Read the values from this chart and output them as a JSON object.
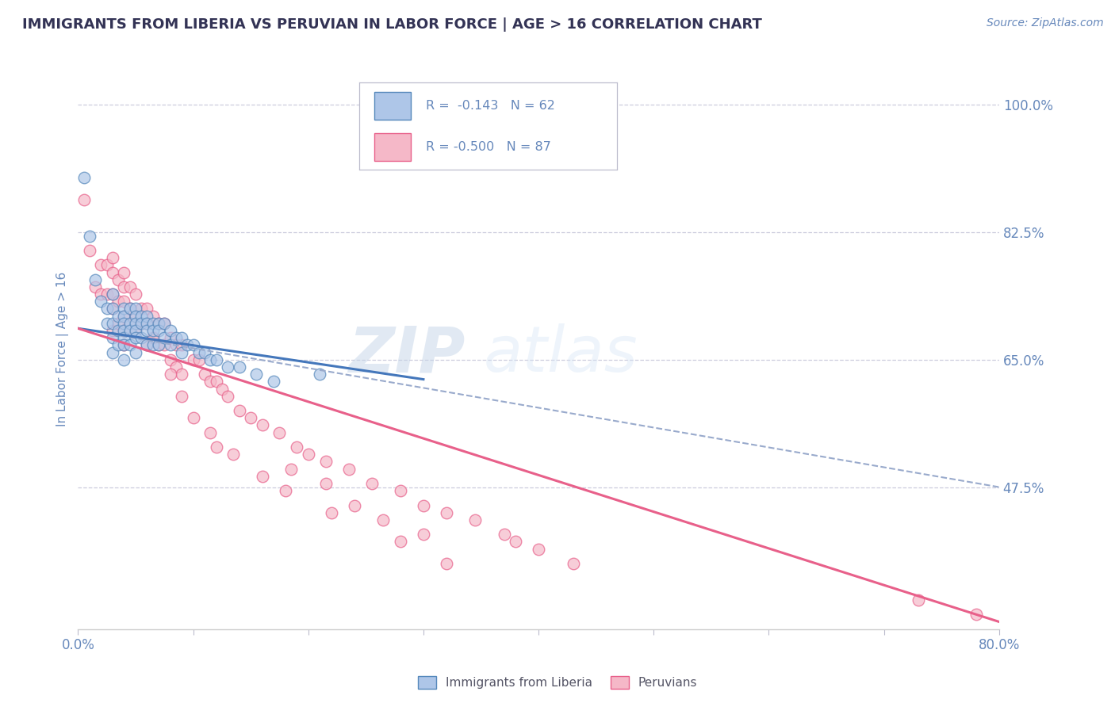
{
  "title": "IMMIGRANTS FROM LIBERIA VS PERUVIAN IN LABOR FORCE | AGE > 16 CORRELATION CHART",
  "source_text": "Source: ZipAtlas.com",
  "ylabel": "In Labor Force | Age > 16",
  "xlim": [
    0.0,
    0.8
  ],
  "ylim": [
    0.28,
    1.05
  ],
  "xticks": [
    0.0,
    0.1,
    0.2,
    0.3,
    0.4,
    0.5,
    0.6,
    0.7,
    0.8
  ],
  "yticks_right": [
    0.475,
    0.65,
    0.825,
    1.0
  ],
  "yticklabels_right": [
    "47.5%",
    "65.0%",
    "82.5%",
    "100.0%"
  ],
  "legend_r1": "R =  -0.143",
  "legend_n1": "N = 62",
  "legend_r2": "R = -0.500",
  "legend_n2": "N = 87",
  "color_liberia_fill": "#aec6e8",
  "color_liberia_edge": "#5588bb",
  "color_peruvian_fill": "#f5b8c8",
  "color_peruvian_edge": "#e8608a",
  "color_liberia_line": "#4477bb",
  "color_peruvian_line": "#e8608a",
  "color_dashed": "#99aacc",
  "background_color": "#ffffff",
  "grid_color": "#ccccdd",
  "title_color": "#333355",
  "axis_label_color": "#6688bb",
  "tick_color": "#6688bb",
  "watermark_zip": "ZIP",
  "watermark_atlas": "atlas",
  "liberia_x": [
    0.005,
    0.01,
    0.015,
    0.02,
    0.025,
    0.025,
    0.03,
    0.03,
    0.03,
    0.03,
    0.03,
    0.035,
    0.035,
    0.035,
    0.04,
    0.04,
    0.04,
    0.04,
    0.04,
    0.04,
    0.04,
    0.045,
    0.045,
    0.045,
    0.045,
    0.05,
    0.05,
    0.05,
    0.05,
    0.05,
    0.05,
    0.055,
    0.055,
    0.055,
    0.06,
    0.06,
    0.06,
    0.06,
    0.065,
    0.065,
    0.065,
    0.07,
    0.07,
    0.07,
    0.075,
    0.075,
    0.08,
    0.08,
    0.085,
    0.09,
    0.09,
    0.095,
    0.1,
    0.105,
    0.11,
    0.115,
    0.12,
    0.13,
    0.14,
    0.155,
    0.17,
    0.21
  ],
  "liberia_y": [
    0.9,
    0.82,
    0.76,
    0.73,
    0.72,
    0.7,
    0.74,
    0.72,
    0.7,
    0.68,
    0.66,
    0.71,
    0.69,
    0.67,
    0.72,
    0.71,
    0.7,
    0.69,
    0.68,
    0.67,
    0.65,
    0.72,
    0.7,
    0.69,
    0.67,
    0.72,
    0.71,
    0.7,
    0.69,
    0.68,
    0.66,
    0.71,
    0.7,
    0.68,
    0.71,
    0.7,
    0.69,
    0.67,
    0.7,
    0.69,
    0.67,
    0.7,
    0.69,
    0.67,
    0.7,
    0.68,
    0.69,
    0.67,
    0.68,
    0.68,
    0.66,
    0.67,
    0.67,
    0.66,
    0.66,
    0.65,
    0.65,
    0.64,
    0.64,
    0.63,
    0.62,
    0.63
  ],
  "peruvian_x": [
    0.005,
    0.01,
    0.015,
    0.02,
    0.02,
    0.025,
    0.025,
    0.03,
    0.03,
    0.03,
    0.03,
    0.03,
    0.035,
    0.035,
    0.035,
    0.04,
    0.04,
    0.04,
    0.04,
    0.04,
    0.04,
    0.045,
    0.045,
    0.045,
    0.05,
    0.05,
    0.05,
    0.055,
    0.055,
    0.06,
    0.06,
    0.06,
    0.065,
    0.065,
    0.07,
    0.07,
    0.075,
    0.075,
    0.08,
    0.08,
    0.085,
    0.085,
    0.09,
    0.09,
    0.1,
    0.105,
    0.11,
    0.115,
    0.12,
    0.125,
    0.13,
    0.14,
    0.15,
    0.16,
    0.175,
    0.19,
    0.2,
    0.215,
    0.235,
    0.255,
    0.28,
    0.3,
    0.32,
    0.345,
    0.37,
    0.38,
    0.4,
    0.43,
    0.065,
    0.08,
    0.09,
    0.1,
    0.115,
    0.12,
    0.135,
    0.16,
    0.18,
    0.22,
    0.28,
    0.32,
    0.185,
    0.215,
    0.24,
    0.265,
    0.3,
    0.73,
    0.78
  ],
  "peruvian_y": [
    0.87,
    0.8,
    0.75,
    0.78,
    0.74,
    0.78,
    0.74,
    0.79,
    0.77,
    0.74,
    0.72,
    0.69,
    0.76,
    0.73,
    0.7,
    0.77,
    0.75,
    0.73,
    0.71,
    0.69,
    0.67,
    0.75,
    0.72,
    0.7,
    0.74,
    0.71,
    0.69,
    0.72,
    0.7,
    0.72,
    0.7,
    0.67,
    0.71,
    0.68,
    0.7,
    0.67,
    0.7,
    0.67,
    0.68,
    0.65,
    0.67,
    0.64,
    0.67,
    0.63,
    0.65,
    0.65,
    0.63,
    0.62,
    0.62,
    0.61,
    0.6,
    0.58,
    0.57,
    0.56,
    0.55,
    0.53,
    0.52,
    0.51,
    0.5,
    0.48,
    0.47,
    0.45,
    0.44,
    0.43,
    0.41,
    0.4,
    0.39,
    0.37,
    0.68,
    0.63,
    0.6,
    0.57,
    0.55,
    0.53,
    0.52,
    0.49,
    0.47,
    0.44,
    0.4,
    0.37,
    0.5,
    0.48,
    0.45,
    0.43,
    0.41,
    0.32,
    0.3
  ],
  "lib_line_x0": 0.0,
  "lib_line_y0": 0.693,
  "lib_line_x1": 0.3,
  "lib_line_y1": 0.623,
  "per_line_x0": 0.0,
  "per_line_y0": 0.693,
  "per_line_x1": 0.8,
  "per_line_y1": 0.29,
  "dash_line_x0": 0.0,
  "dash_line_y0": 0.693,
  "dash_line_x1": 0.8,
  "dash_line_y1": 0.475
}
